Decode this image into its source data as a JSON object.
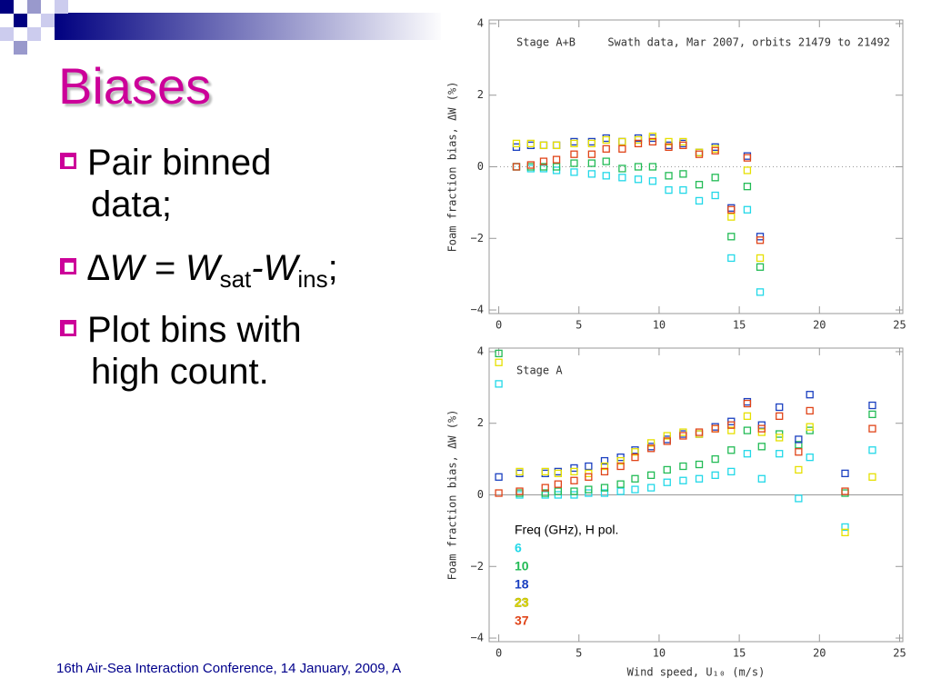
{
  "slide": {
    "title": "Biases",
    "bullets": [
      {
        "parts": [
          "Pair binned",
          "data;"
        ]
      },
      {
        "parts": [
          "∆W = W",
          "sat",
          "-W",
          "ins",
          ";"
        ]
      },
      {
        "parts": [
          "Plot bins with",
          "high count."
        ]
      }
    ],
    "footer": "16th Air-Sea Interaction Conference, 14 January, 2009, A"
  },
  "chart_data": [
    {
      "type": "scatter",
      "annotations": [
        "Stage A+B",
        "Swath data, Mar 2007, orbits 21479 to 21492"
      ],
      "ylabel": "Foam fraction bias, ΔW (%)",
      "x": [
        1.1,
        2,
        2.8,
        3.6,
        4.7,
        5.8,
        6.7,
        7.7,
        8.7,
        9.6,
        10.6,
        11.5,
        12.5,
        13.5,
        14.5,
        15.5,
        16.3
      ],
      "series": [
        {
          "name": "6",
          "color": "#22d8e8",
          "values": [
            0,
            -0.05,
            -0.05,
            -0.1,
            -0.15,
            -0.2,
            -0.25,
            -0.3,
            -0.35,
            -0.4,
            -0.65,
            -0.65,
            -0.95,
            -0.8,
            -2.55,
            -1.2,
            -3.5
          ]
        },
        {
          "name": "10",
          "color": "#22bb55",
          "values": [
            0,
            0,
            0,
            0,
            0.1,
            0.1,
            0.15,
            -0.05,
            0,
            0,
            -0.25,
            -0.2,
            -0.5,
            -0.3,
            -1.95,
            -0.55,
            -2.8
          ]
        },
        {
          "name": "18",
          "color": "#1a3fc0",
          "values": [
            0.55,
            0.6,
            0.6,
            0.6,
            0.7,
            0.7,
            0.8,
            0.7,
            0.8,
            0.8,
            0.6,
            0.65,
            0.4,
            0.55,
            -1.15,
            0.3,
            -1.95
          ]
        },
        {
          "name": "23",
          "color": "#e6e000",
          "values": [
            0.65,
            0.65,
            0.6,
            0.6,
            0.65,
            0.65,
            0.75,
            0.7,
            0.75,
            0.85,
            0.7,
            0.7,
            0.4,
            0.5,
            -1.4,
            -0.1,
            -2.55
          ]
        },
        {
          "name": "37",
          "color": "#e04418",
          "values": [
            0,
            0.05,
            0.15,
            0.2,
            0.35,
            0.35,
            0.5,
            0.5,
            0.65,
            0.7,
            0.55,
            0.6,
            0.35,
            0.45,
            -1.2,
            0.25,
            -2.05
          ]
        }
      ],
      "xlim": [
        -0.6,
        25.2
      ],
      "xticks": [
        0,
        5,
        10,
        15,
        20,
        25
      ],
      "ylim": [
        -4.1,
        4.1
      ],
      "yticks": [
        {
          "value": -4,
          "label": "−4"
        },
        {
          "value": -2,
          "label": "−2"
        },
        0,
        2,
        4
      ],
      "zero_line": "dotted"
    },
    {
      "type": "scatter",
      "annotations": [
        "Stage A"
      ],
      "ylabel": "Foam fraction bias, ΔW (%)",
      "xlabel": "Wind speed, U₁₀ (m/s)",
      "legend_title": "Freq (GHz), H pol.",
      "legend": "lower left",
      "x": [
        0,
        1.3,
        2.9,
        3.7,
        4.7,
        5.6,
        6.6,
        7.6,
        8.5,
        9.5,
        10.5,
        11.5,
        12.5,
        13.5,
        14.5,
        15.5,
        16.4,
        17.5,
        18.7,
        19.4,
        21.6,
        23.3
      ],
      "series": [
        {
          "name": "6",
          "color": "#22d8e8",
          "values": [
            3.1,
            0,
            0,
            0,
            0,
            0.05,
            0.05,
            0.1,
            0.15,
            0.2,
            0.35,
            0.4,
            0.45,
            0.55,
            0.65,
            1.15,
            0.45,
            1.15,
            -0.1,
            1.05,
            -0.9,
            1.25
          ]
        },
        {
          "name": "10",
          "color": "#22bb55",
          "values": [
            3.95,
            0.05,
            0.05,
            0.1,
            0.1,
            0.15,
            0.2,
            0.3,
            0.45,
            0.55,
            0.7,
            0.8,
            0.85,
            1.0,
            1.25,
            1.8,
            1.35,
            1.7,
            1.4,
            1.8,
            0.05,
            2.25
          ]
        },
        {
          "name": "18",
          "color": "#1a3fc0",
          "values": [
            0.5,
            0.6,
            0.6,
            0.65,
            0.75,
            0.8,
            0.95,
            1.05,
            1.25,
            1.35,
            1.55,
            1.7,
            1.7,
            1.9,
            2.05,
            2.6,
            1.95,
            2.45,
            1.55,
            2.8,
            0.6,
            2.5
          ]
        },
        {
          "name": "23",
          "color": "#e6e000",
          "values": [
            3.7,
            0.65,
            0.65,
            0.6,
            0.65,
            0.6,
            0.8,
            0.95,
            1.2,
            1.45,
            1.65,
            1.75,
            1.7,
            1.85,
            1.8,
            2.2,
            1.75,
            1.6,
            0.7,
            1.9,
            -1.05,
            0.5
          ]
        },
        {
          "name": "37",
          "color": "#e04418",
          "values": [
            0.05,
            0.1,
            0.2,
            0.3,
            0.4,
            0.5,
            0.65,
            0.8,
            1.05,
            1.3,
            1.5,
            1.65,
            1.75,
            1.85,
            1.95,
            2.55,
            1.85,
            2.2,
            1.2,
            2.35,
            0.1,
            1.85
          ]
        }
      ],
      "xlim": [
        -0.6,
        25.2
      ],
      "xticks": [
        0,
        5,
        10,
        15,
        20,
        25
      ],
      "ylim": [
        -4.1,
        4.1
      ],
      "yticks": [
        {
          "value": -4,
          "label": "−4"
        },
        {
          "value": -2,
          "label": "−2"
        },
        0,
        2,
        4
      ],
      "zero_line": "solid"
    }
  ]
}
